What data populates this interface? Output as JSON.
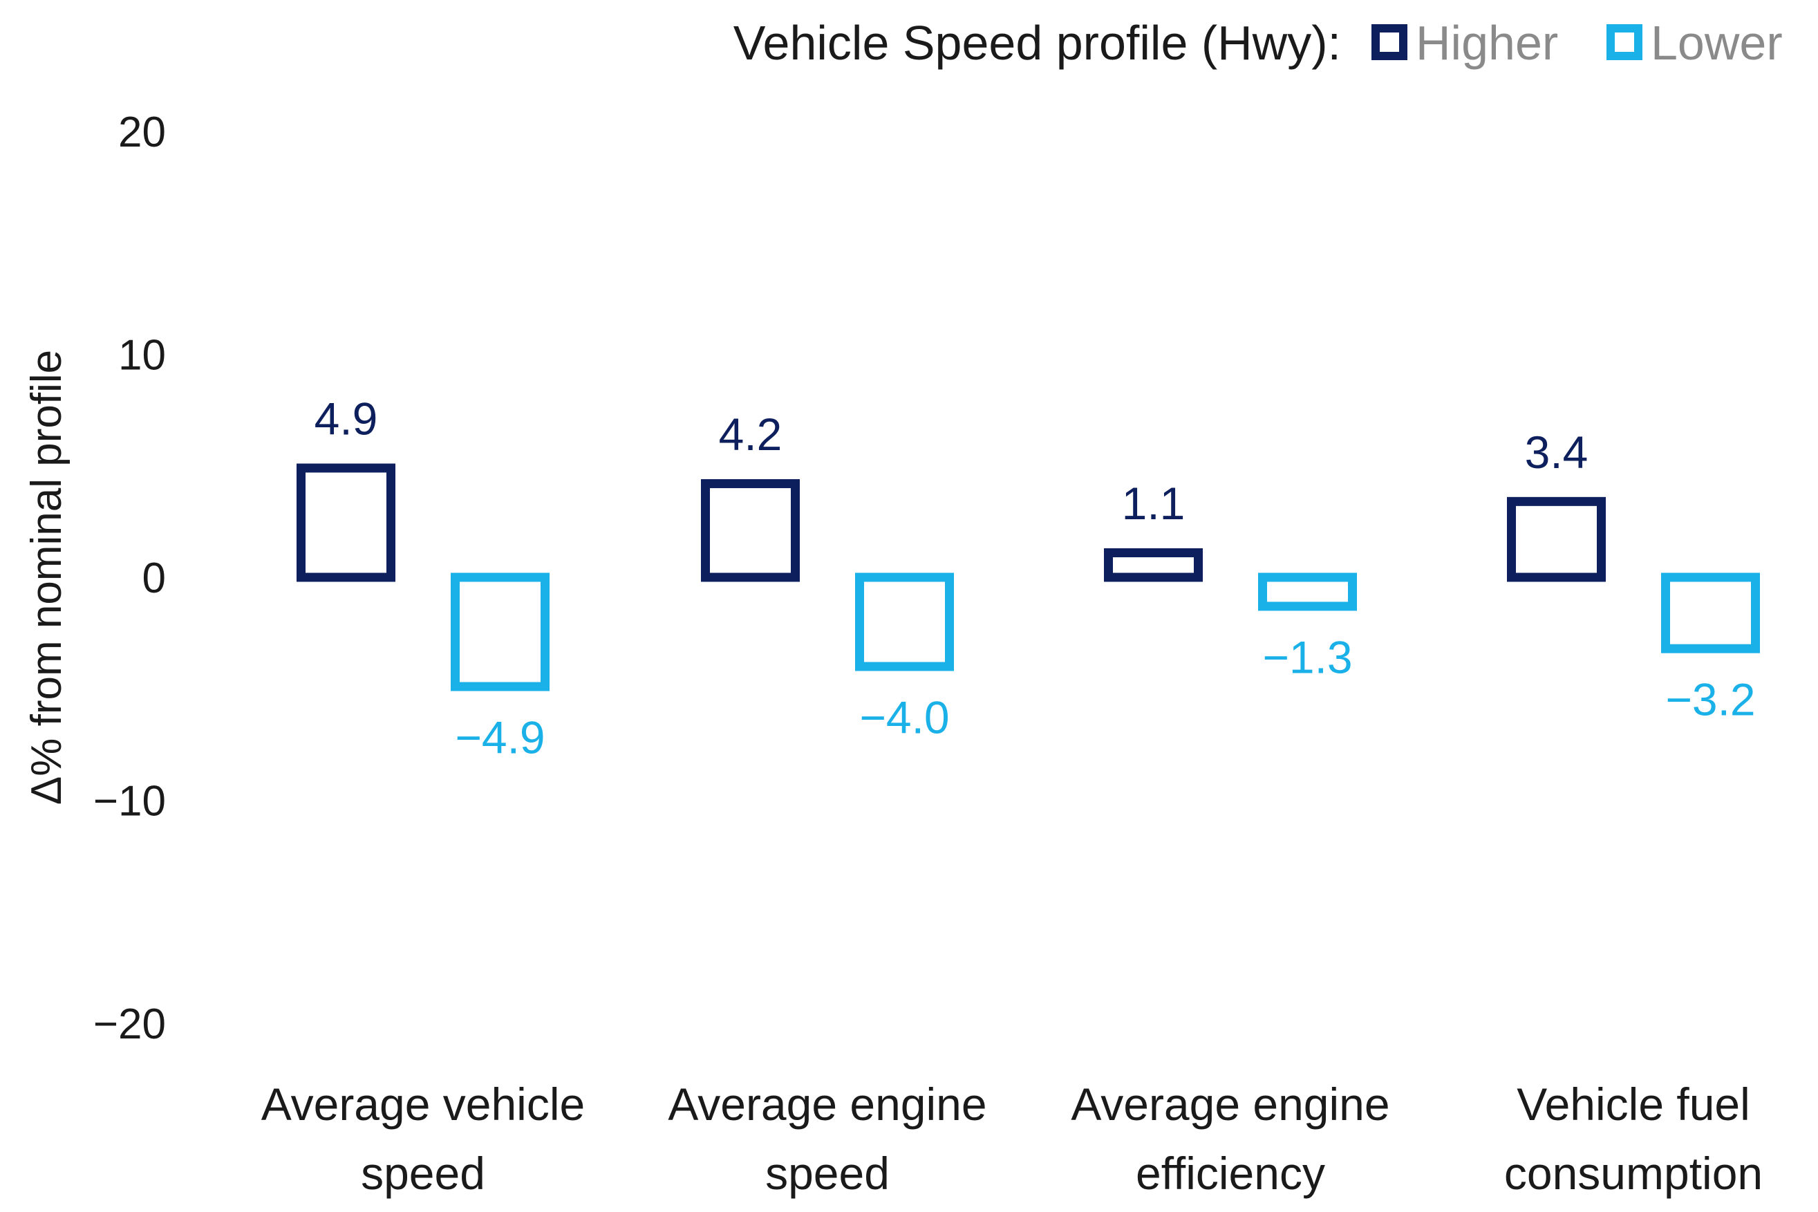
{
  "chart_data": {
    "type": "bar",
    "legend": {
      "title": "Vehicle Speed profile (Hwy):",
      "placement": "top-right"
    },
    "ylabel": "Δ% from nominal profile",
    "xlabel": "",
    "ylim": [
      -20,
      20
    ],
    "yticks": [
      20,
      10,
      0,
      -10,
      -20
    ],
    "ytick_labels": [
      "20",
      "10",
      "0",
      "−10",
      "−20"
    ],
    "categories": [
      [
        "Average vehicle",
        "speed"
      ],
      [
        "Average engine",
        "speed"
      ],
      [
        "Average engine",
        "efficiency"
      ],
      [
        "Vehicle fuel",
        "consumption"
      ]
    ],
    "series": [
      {
        "name": "Higher",
        "color": "#0d1f5c",
        "values": [
          4.9,
          4.2,
          1.1,
          3.4
        ],
        "labels": [
          "4.9",
          "4.2",
          "1.1",
          "3.4"
        ]
      },
      {
        "name": "Lower",
        "color": "#1ab0e8",
        "values": [
          -4.9,
          -4.0,
          -1.3,
          -3.2
        ],
        "labels": [
          "−4.9",
          "−4.0",
          "−1.3",
          "−3.2"
        ]
      }
    ],
    "bar_style": "outline",
    "grid": false
  }
}
